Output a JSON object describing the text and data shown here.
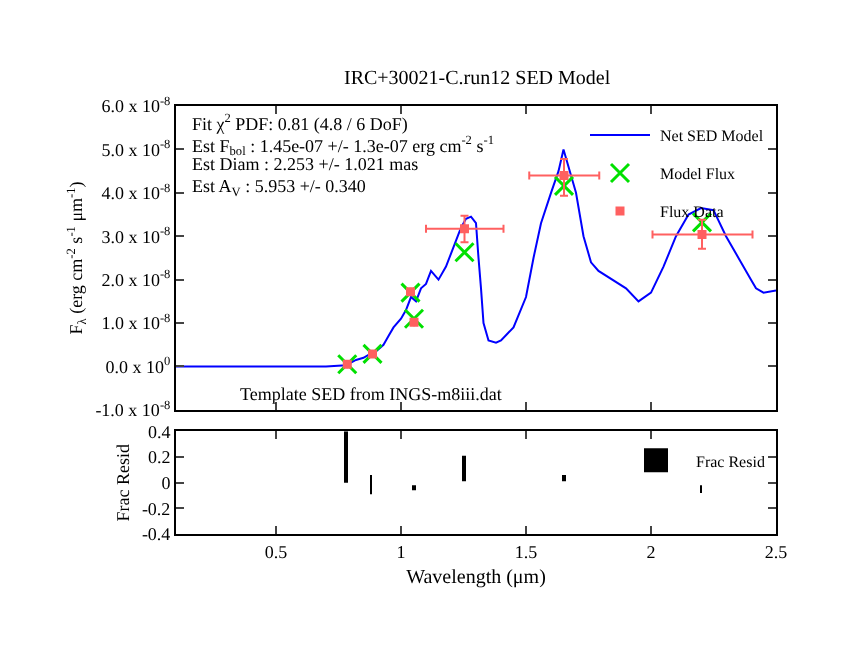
{
  "chart_data": [
    {
      "type": "line",
      "title": "IRC+30021-C.run12 SED Model",
      "ylabel": "F$_{λ}$ (erg cm$^{-2}$ s$^{-1}$ μm$^{-1}$)",
      "xlim": [
        0.1,
        2.5
      ],
      "xticks": [
        0.5,
        1,
        1.5,
        2,
        2.5
      ],
      "ylim": [
        -1e-08,
        6e-08
      ],
      "yticks": [
        {
          "value": -1e-08,
          "label": "-1.0 x 10$^{-8}$"
        },
        {
          "value": 0,
          "label": "0.0 x 10$^{0}$"
        },
        {
          "value": 1e-08,
          "label": "1.0 x 10$^{-8}$"
        },
        {
          "value": 2e-08,
          "label": "2.0 x 10$^{-8}$"
        },
        {
          "value": 3e-08,
          "label": "3.0 x 10$^{-8}$"
        },
        {
          "value": 4e-08,
          "label": "4.0 x 10$^{-8}$"
        },
        {
          "value": 5e-08,
          "label": "5.0 x 10$^{-8}$"
        },
        {
          "value": 6e-08,
          "label": "6.0 x 10$^{-8}$"
        }
      ],
      "tick_labels": "y",
      "legend": "top right",
      "annotations": [
        "Fit χ$^{2}$ PDF: 0.81 (4.8 / 6 DoF)",
        "Est F$_{bol}$ : 1.45e-07 +/- 1.3e-07 erg cm$^{-2}$ s$^{-1}$",
        "Est Diam : 2.253 +/- 1.021 mas",
        "Est A$_{V}$ : 5.953 +/- 0.340",
        "Template SED from INGS-m8iii.dat"
      ],
      "series": [
        {
          "name": "Net SED Model",
          "type": "line",
          "color": "#0000ff",
          "marker": "none",
          "x": [
            0.1,
            0.3,
            0.5,
            0.7,
            0.78,
            0.82,
            0.85,
            0.88,
            0.9,
            0.93,
            0.95,
            0.97,
            1.0,
            1.02,
            1.04,
            1.06,
            1.08,
            1.1,
            1.12,
            1.15,
            1.18,
            1.2,
            1.22,
            1.24,
            1.26,
            1.28,
            1.3,
            1.31,
            1.32,
            1.33,
            1.35,
            1.38,
            1.4,
            1.45,
            1.5,
            1.53,
            1.56,
            1.6,
            1.63,
            1.65,
            1.67,
            1.7,
            1.73,
            1.76,
            1.79,
            1.9,
            1.95,
            2.0,
            2.05,
            2.1,
            2.15,
            2.2,
            2.25,
            2.3,
            2.35,
            2.4,
            2.42,
            2.45,
            2.5
          ],
          "values": [
            0,
            0,
            0,
            0,
            3e-10,
            1.5e-09,
            2e-09,
            3e-09,
            3.5e-09,
            5e-09,
            7e-09,
            9e-09,
            1.1e-08,
            1.3e-08,
            1.6e-08,
            1.5e-08,
            1.8e-08,
            1.9e-08,
            2.2e-08,
            2e-08,
            2.3e-08,
            2.6e-08,
            2.9e-08,
            3.2e-08,
            3.4e-08,
            3.45e-08,
            3.3e-08,
            2.5e-08,
            1.8e-08,
            1e-08,
            6e-09,
            5.5e-09,
            6e-09,
            9e-09,
            1.6e-08,
            2.5e-08,
            3.3e-08,
            4e-08,
            4.5e-08,
            5e-08,
            4.6e-08,
            4e-08,
            3e-08,
            2.4e-08,
            2.2e-08,
            1.8e-08,
            1.5e-08,
            1.7e-08,
            2.3e-08,
            3e-08,
            3.5e-08,
            3.65e-08,
            3.6e-08,
            3e-08,
            2.5e-08,
            2e-08,
            1.8e-08,
            1.7e-08,
            1.75e-08
          ]
        },
        {
          "name": "Model Flux",
          "type": "scatter",
          "color": "#00e000",
          "marker": "cross",
          "x": [
            0.785,
            0.886,
            1.038,
            1.052,
            1.254,
            1.652,
            2.204
          ],
          "values": [
            5e-10,
            2.9e-09,
            1.7e-08,
            1.1e-08,
            2.63e-08,
            4.16e-08,
            3.32e-08
          ]
        },
        {
          "name": "Flux Data",
          "type": "scatter",
          "color": "#ff6060",
          "marker": "square",
          "x": [
            0.785,
            0.886,
            1.038,
            1.052,
            1.254,
            1.652,
            2.204
          ],
          "values": [
            5e-10,
            2.9e-09,
            1.72e-08,
            1.02e-08,
            3.17e-08,
            4.4e-08,
            3.04e-08
          ],
          "errors": [
            null,
            null,
            null,
            null,
            [
              2.86e-08,
              3.47e-08
            ],
            [
              3.93e-08,
              4.78e-08
            ],
            [
              2.71e-08,
              3.38e-08
            ]
          ],
          "xerrors": [
            null,
            null,
            null,
            null,
            [
              1.1,
              1.41
            ],
            [
              1.513,
              1.793
            ],
            [
              2.006,
              2.406
            ]
          ]
        }
      ]
    },
    {
      "type": "bar",
      "xlabel": "Wavelength (μm)",
      "ylabel": "Frac Resid",
      "xlim": [
        0.1,
        2.5
      ],
      "xticks": [
        0.5,
        1,
        1.5,
        2,
        2.5
      ],
      "ylim": [
        -0.4,
        0.4
      ],
      "yticks": [
        -0.4,
        -0.2,
        0,
        0.2,
        0.4
      ],
      "legend": "top right",
      "series": [
        {
          "name": "Frac Resid",
          "color": "#000000",
          "x": [
            0.78,
            0.88,
            1.05,
            1.25,
            1.65,
            2.2
          ],
          "base": [
            0,
            -0.09,
            -0.06,
            0.01,
            0.01,
            -0.08
          ],
          "values": [
            0.4,
            0.15,
            0.04,
            0.2,
            0.05,
            0.06
          ]
        }
      ]
    }
  ]
}
